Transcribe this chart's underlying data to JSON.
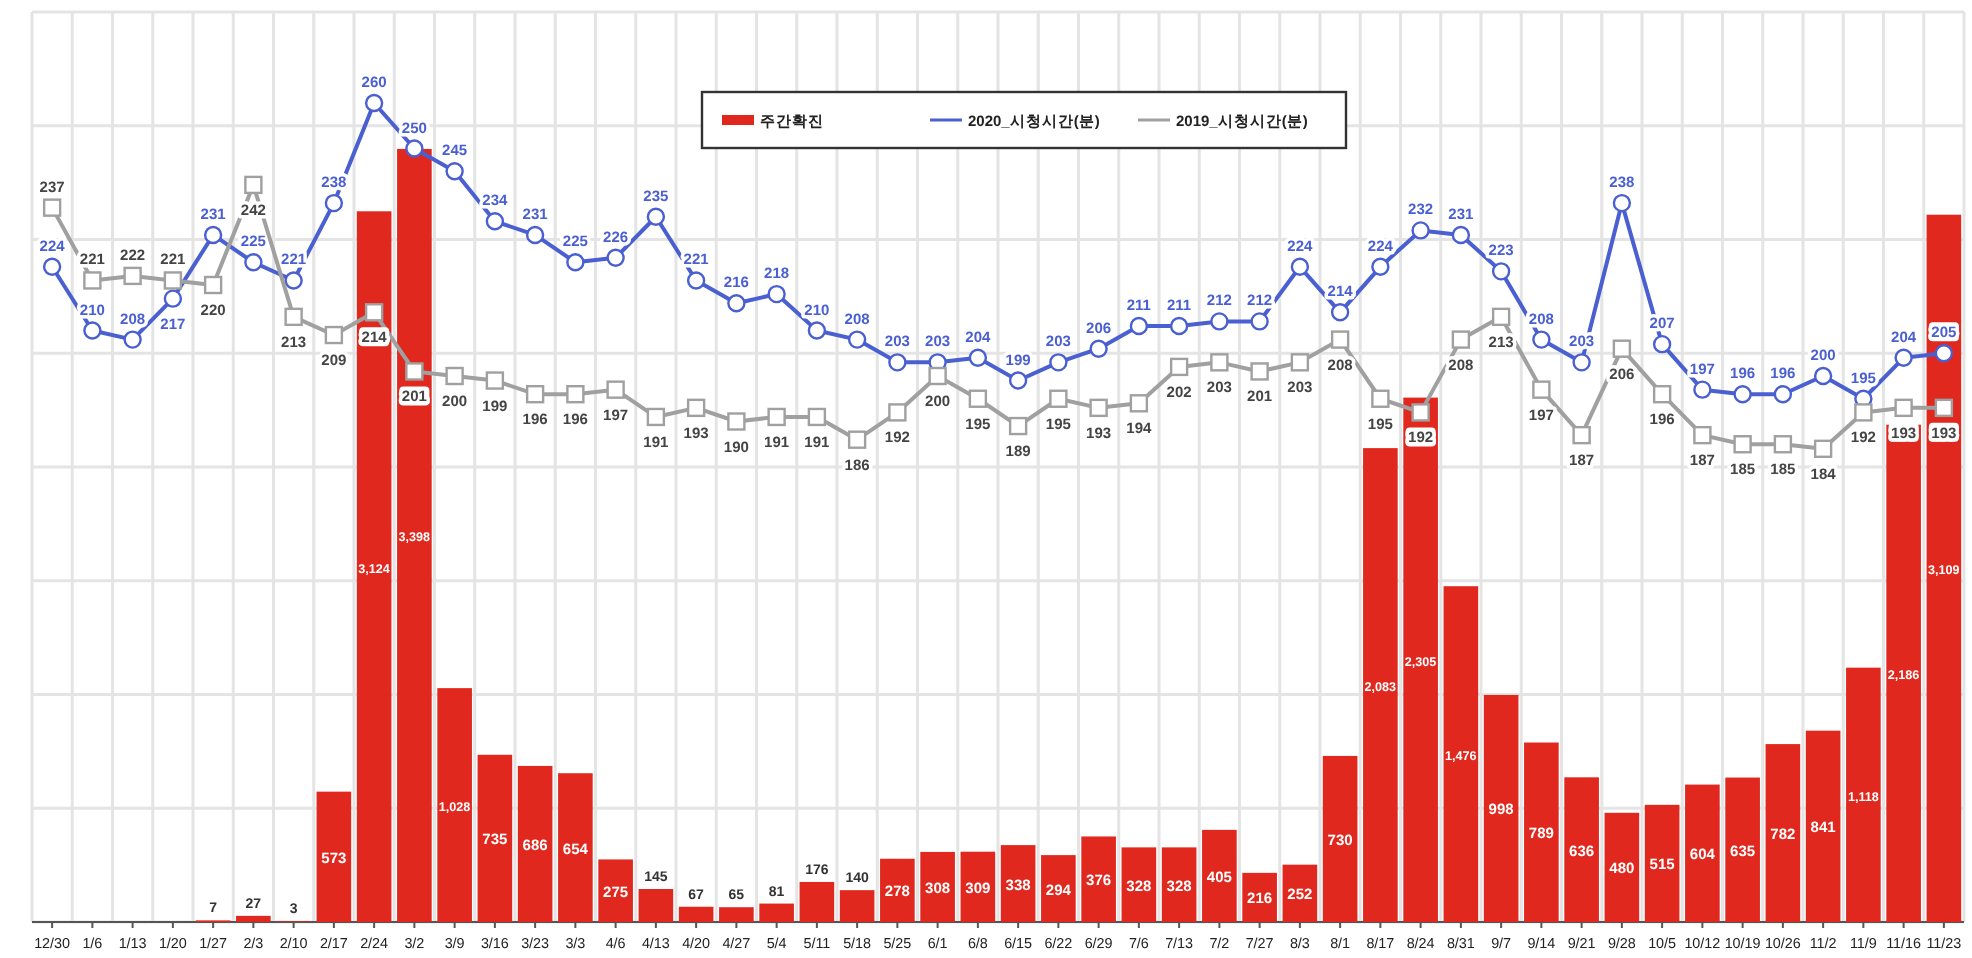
{
  "chart_data": {
    "type": "bar",
    "categories": [
      "12/30",
      "1/6",
      "1/13",
      "1/20",
      "1/27",
      "2/3",
      "2/10",
      "2/17",
      "2/24",
      "3/2",
      "3/9",
      "3/16",
      "3/23",
      "3/3",
      "4/6",
      "4/13",
      "4/20",
      "4/27",
      "5/4",
      "5/11",
      "5/18",
      "5/25",
      "6/1",
      "6/8",
      "6/15",
      "6/22",
      "6/29",
      "7/6",
      "7/13",
      "7/2",
      "7/27",
      "8/3",
      "8/1",
      "8/17",
      "8/24",
      "8/31",
      "9/7",
      "9/14",
      "9/21",
      "9/28",
      "10/5",
      "10/12",
      "10/19",
      "10/26",
      "11/2",
      "11/9",
      "11/16",
      "11/23"
    ],
    "ylim": [
      0,
      4000
    ],
    "yticks": [
      {
        "value": 0,
        "label": null
      },
      {
        "value": 500,
        "label": null
      },
      {
        "value": 1000,
        "label": null
      },
      {
        "value": 1500,
        "label": null
      },
      {
        "value": 2000,
        "label": null
      },
      {
        "value": 2500,
        "label": null
      },
      {
        "value": 3000,
        "label": null
      },
      {
        "value": 3500,
        "label": null
      },
      {
        "value": 4000,
        "label": null
      }
    ],
    "y2lim": [
      80,
      280
    ],
    "tick_labels": "x",
    "grid": true,
    "legend": "top",
    "series": [
      {
        "name": "주간확진",
        "color": "#e0281e",
        "values": [
          null,
          null,
          null,
          null,
          7,
          27,
          3,
          573,
          3124,
          3398,
          1028,
          735,
          686,
          654,
          275,
          145,
          67,
          65,
          81,
          176,
          140,
          278,
          308,
          309,
          338,
          294,
          376,
          328,
          328,
          405,
          216,
          252,
          730,
          2083,
          2305,
          1476,
          998,
          789,
          636,
          480,
          515,
          604,
          635,
          782,
          841,
          1118,
          2186,
          3109
        ],
        "value_labels": [
          null,
          null,
          null,
          null,
          "7",
          "27",
          "3",
          "573",
          "3,124",
          "3,398",
          "1,028",
          "735",
          "686",
          "654",
          "275",
          "145",
          "67",
          "65",
          "81",
          "176",
          "140",
          "278",
          "308",
          "309",
          "338",
          "294",
          "376",
          "328",
          "328",
          "405",
          "216",
          "252",
          "730",
          "2,083",
          "2,305",
          "1,476",
          "998",
          "789",
          "636",
          "480",
          "515",
          "604",
          "635",
          "782",
          "841",
          "1,118",
          "2,186",
          "3,109"
        ]
      },
      {
        "name": "2020_시청시간(분)",
        "type": "line",
        "axis": "y2",
        "color": "#4a5fd0",
        "marker": "circle",
        "data_labels": true,
        "values": [
          224,
          210,
          208,
          217,
          231,
          225,
          221,
          238,
          260,
          250,
          245,
          234,
          231,
          225,
          226,
          235,
          221,
          216,
          218,
          210,
          208,
          203,
          203,
          204,
          199,
          203,
          206,
          211,
          211,
          212,
          212,
          224,
          214,
          224,
          232,
          231,
          223,
          208,
          203,
          238,
          207,
          197,
          196,
          196,
          200,
          195,
          204,
          205
        ]
      },
      {
        "name": "2019_시청시간(분)",
        "type": "line",
        "axis": "y2",
        "color": "#a0a0a0",
        "marker": "square",
        "data_labels": true,
        "values": [
          237,
          221,
          222,
          221,
          220,
          242,
          213,
          209,
          214,
          201,
          200,
          199,
          196,
          196,
          197,
          191,
          193,
          190,
          191,
          191,
          186,
          192,
          200,
          195,
          189,
          195,
          193,
          194,
          202,
          203,
          201,
          203,
          208,
          195,
          192,
          208,
          213,
          197,
          187,
          206,
          196,
          187,
          185,
          185,
          184,
          192,
          193,
          193
        ]
      }
    ]
  }
}
